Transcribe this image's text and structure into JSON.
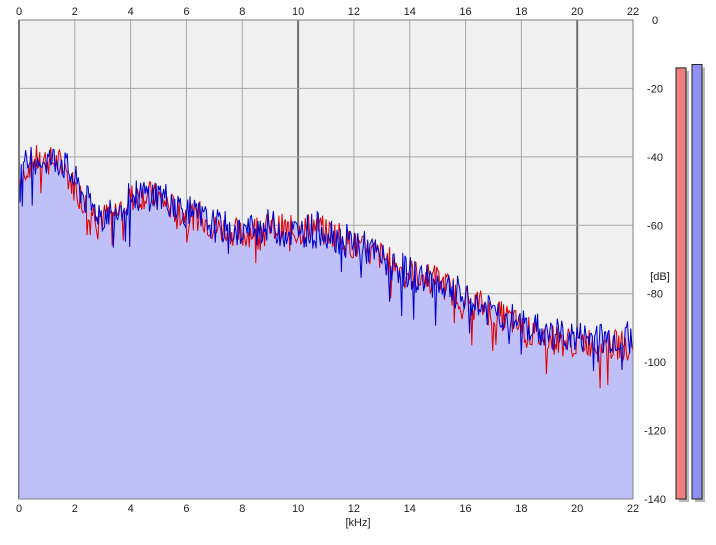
{
  "chart_data": {
    "type": "area",
    "title": "",
    "xlabel": "[kHz]",
    "ylabel": "[dB]",
    "xlim": [
      0,
      22
    ],
    "ylim": [
      -140,
      0
    ],
    "x_ticks": [
      "0",
      "2",
      "4",
      "6",
      "8",
      "10",
      "12",
      "14",
      "16",
      "18",
      "20",
      "22"
    ],
    "y_ticks": [
      "0",
      "-20",
      "-40",
      "-60",
      "-80",
      "-100",
      "-120",
      "-140"
    ],
    "grid": true,
    "colors": {
      "plot_background": "#f0f0f0",
      "fill": "#c0c0f8",
      "grid": "#a8a8a8",
      "major_grid": "#707070",
      "series_red": "#e00000",
      "series_blue": "#0000d0",
      "meter_left": "#f08080",
      "meter_right": "#9090f0"
    },
    "series": [
      {
        "color": "#e00000",
        "x": [
          0,
          0.5,
          1,
          1.5,
          2,
          2.5,
          3,
          3.5,
          4,
          4.5,
          5,
          5.5,
          6,
          6.5,
          7,
          7.5,
          8,
          8.5,
          9,
          9.5,
          10,
          10.5,
          11,
          11.5,
          12,
          12.5,
          13,
          13.5,
          14,
          14.5,
          15,
          15.5,
          16,
          16.5,
          17,
          17.5,
          18,
          18.5,
          19,
          19.5,
          20,
          20.5,
          21,
          21.5,
          22
        ],
        "values": [
          -46,
          -41,
          -41,
          -42,
          -49,
          -55,
          -58,
          -56,
          -52,
          -51,
          -52,
          -55,
          -57,
          -57,
          -61,
          -61,
          -63,
          -61,
          -61,
          -61,
          -62,
          -60,
          -62,
          -63,
          -66,
          -68,
          -69,
          -72,
          -74,
          -75,
          -76,
          -79,
          -82,
          -83,
          -86,
          -87,
          -90,
          -92,
          -93,
          -94,
          -94,
          -94,
          -95,
          -95,
          -95
        ]
      },
      {
        "color": "#0000d0",
        "x": [
          0,
          0.5,
          1,
          1.5,
          2,
          2.5,
          3,
          3.5,
          4,
          4.5,
          5,
          5.5,
          6,
          6.5,
          7,
          7.5,
          8,
          8.5,
          9,
          9.5,
          10,
          10.5,
          11,
          11.5,
          12,
          12.5,
          13,
          13.5,
          14,
          14.5,
          15,
          15.5,
          16,
          16.5,
          17,
          17.5,
          18,
          18.5,
          19,
          19.5,
          20,
          20.5,
          21,
          21.5,
          22
        ],
        "values": [
          -45,
          -40,
          -41,
          -41,
          -47,
          -54,
          -57,
          -55,
          -52,
          -51,
          -51,
          -53,
          -56,
          -58,
          -60,
          -61,
          -62,
          -61,
          -60,
          -62,
          -62,
          -61,
          -61,
          -64,
          -65,
          -67,
          -70,
          -72,
          -74,
          -76,
          -77,
          -78,
          -82,
          -84,
          -85,
          -87,
          -89,
          -90,
          -92,
          -92,
          -93,
          -93,
          -93,
          -93,
          -93
        ]
      }
    ],
    "meters": {
      "left": -14,
      "right": -13
    }
  }
}
